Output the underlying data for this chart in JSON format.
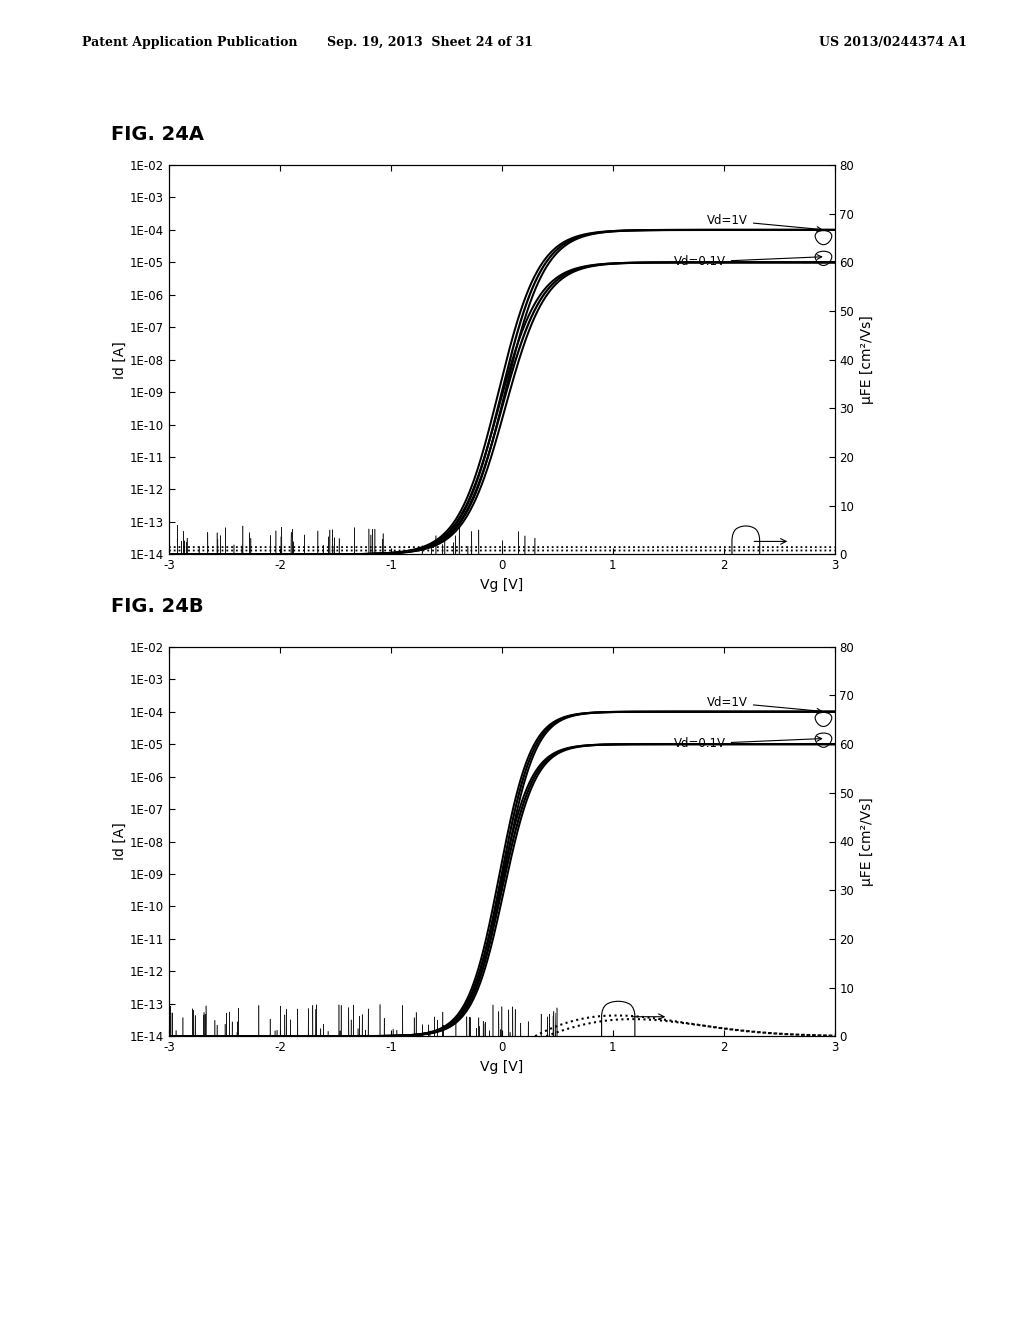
{
  "header_left": "Patent Application Publication",
  "header_center": "Sep. 19, 2013  Sheet 24 of 31",
  "header_right": "US 2013/0244374 A1",
  "fig_a_label": "FIG. 24A",
  "fig_b_label": "FIG. 24B",
  "xlabel": "Vg [V]",
  "ylabel_left": "Id [A]",
  "ylabel_right": "μFE [cm²/Vs]",
  "xmin": -3,
  "xmax": 3,
  "yticks_log": [
    -14,
    -13,
    -12,
    -11,
    -10,
    -9,
    -8,
    -7,
    -6,
    -5,
    -4,
    -3,
    -2
  ],
  "ytick_labels_log": [
    "1E-14",
    "1E-13",
    "1E-12",
    "1E-11",
    "1E-10",
    "1E-09",
    "1E-08",
    "1E-07",
    "1E-06",
    "1E-05",
    "1E-04",
    "1E-03",
    "1E-02"
  ],
  "yticks_right": [
    0,
    10,
    20,
    30,
    40,
    50,
    60,
    70,
    80
  ],
  "xticks": [
    -3,
    -2,
    -1,
    0,
    1,
    2,
    3
  ],
  "background_color": "#ffffff"
}
